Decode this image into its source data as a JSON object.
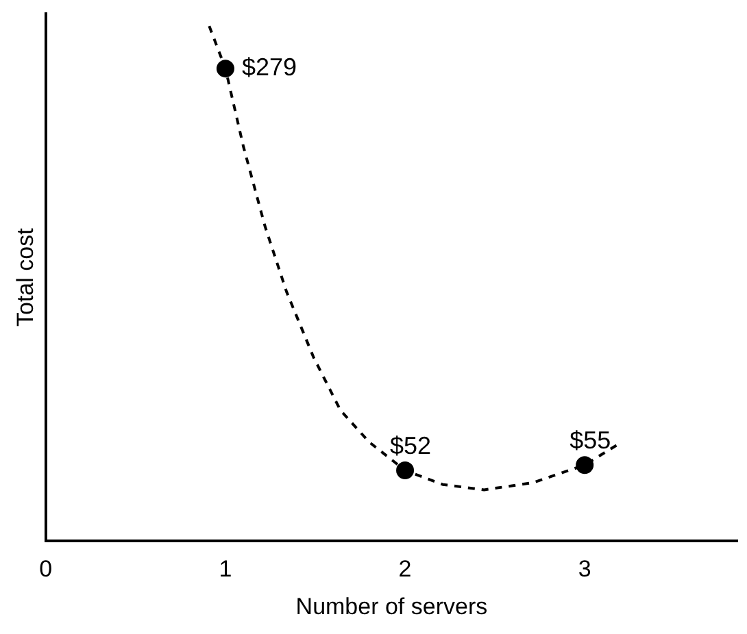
{
  "chart_data": {
    "type": "scatter",
    "xlabel": "Number of servers",
    "ylabel": "Total cost",
    "xlim": [
      0,
      3.85
    ],
    "xticks": [
      0,
      1,
      2,
      3
    ],
    "ylim": [
      12,
      310
    ],
    "tick_labels": "x",
    "grid": false,
    "legend": false,
    "series": [
      {
        "type": "line",
        "color": "#000000",
        "line_style": "dashed",
        "marker": "none",
        "x": [
          0.91,
          1.0,
          1.1,
          1.22,
          1.34,
          1.49,
          1.64,
          1.8,
          2.0,
          2.21,
          2.44,
          2.71,
          3.0,
          3.19
        ],
        "values": [
          303,
          279,
          235,
          190,
          153,
          116,
          86,
          68,
          52,
          44,
          41,
          45,
          55,
          67
        ]
      },
      {
        "type": "scatter",
        "color": "#000000",
        "marker": "circle",
        "x": [
          1,
          2,
          3
        ],
        "values": [
          279,
          52,
          55
        ],
        "value_labels": [
          "$279",
          "$52",
          "$55"
        ]
      }
    ]
  }
}
